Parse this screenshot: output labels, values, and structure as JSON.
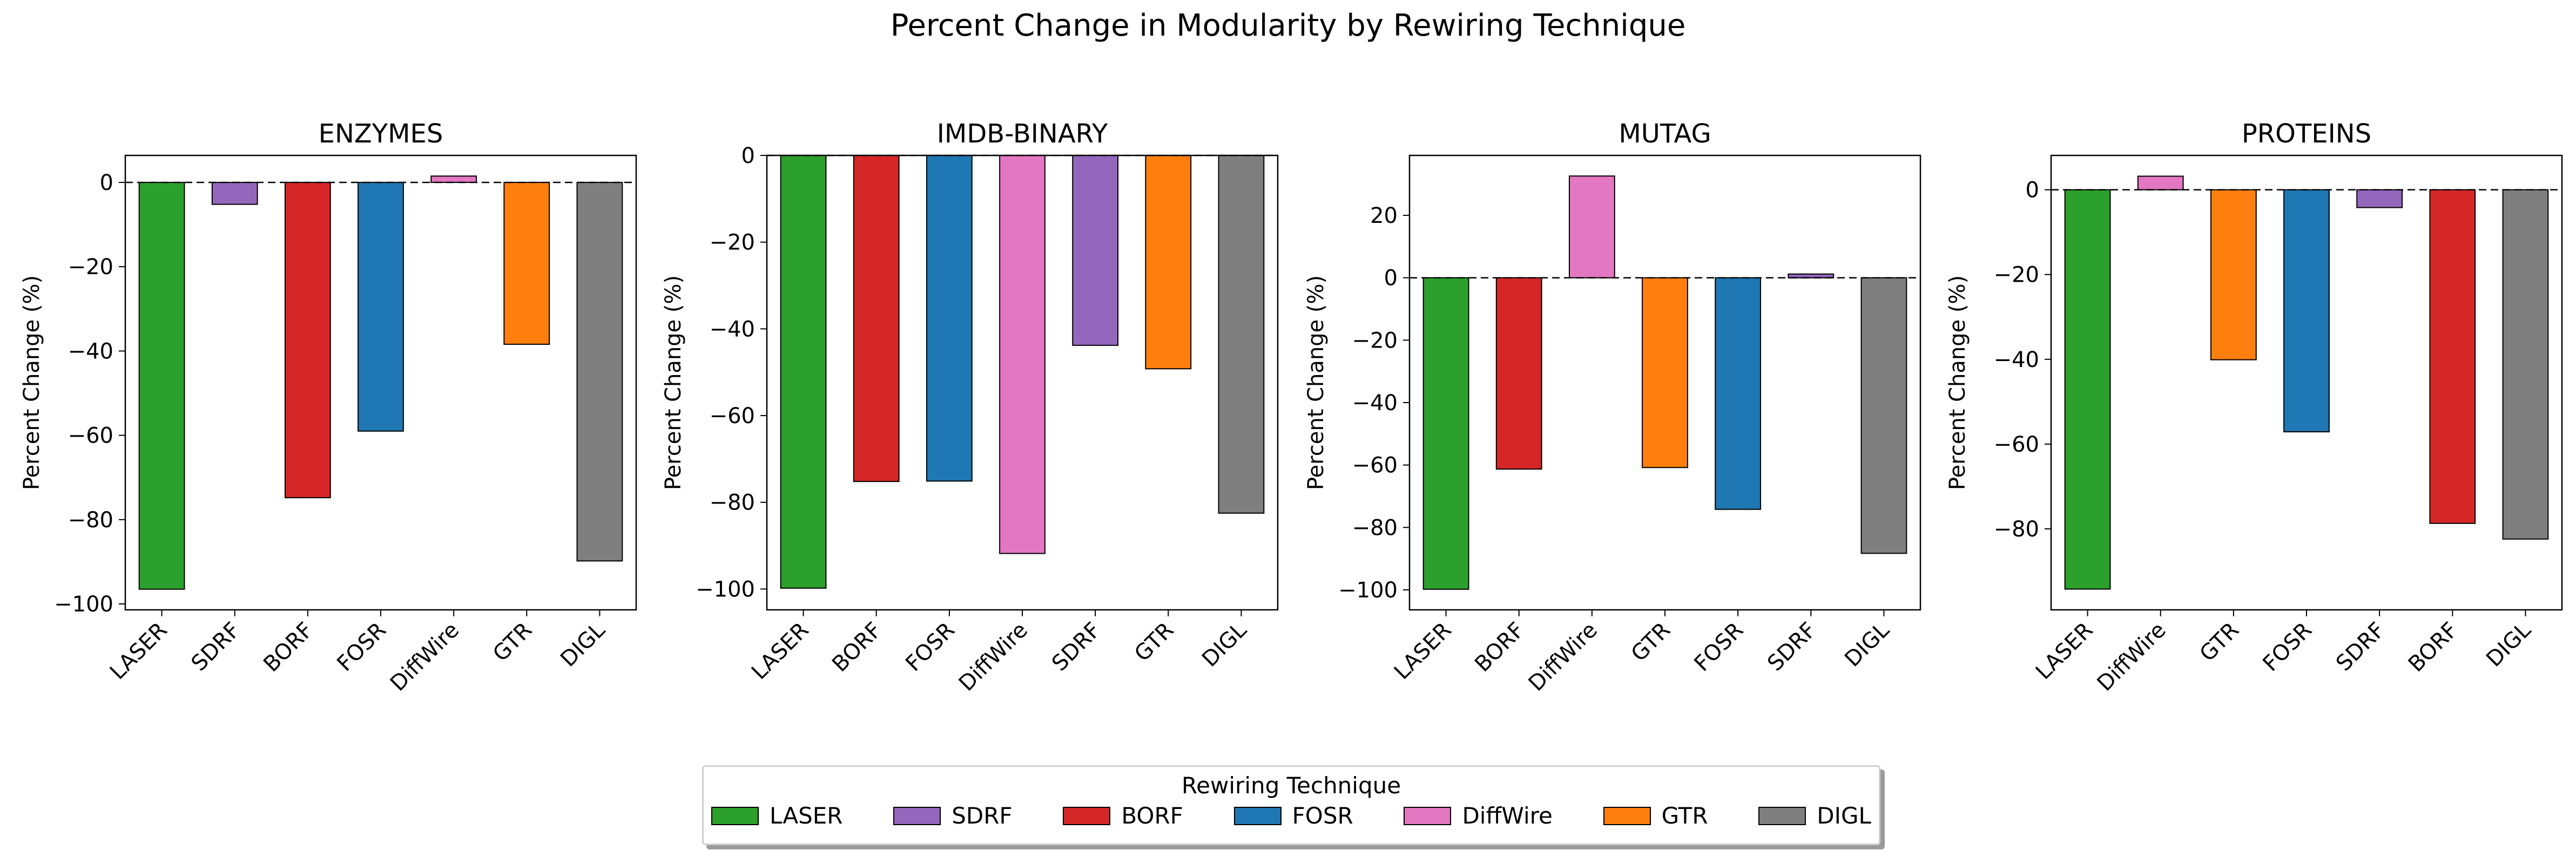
{
  "figure_title": "Percent Change in Modularity by Rewiring Technique",
  "colors": {
    "LASER": "#2ca02c",
    "SDRF": "#9467bd",
    "BORF": "#d62728",
    "FOSR": "#1f77b4",
    "DiffWire": "#e377c2",
    "GTR": "#ff7f0e",
    "DIGL": "#7f7f7f"
  },
  "legend": {
    "title": "Rewiring Technique",
    "items": [
      "LASER",
      "SDRF",
      "BORF",
      "FOSR",
      "DiffWire",
      "GTR",
      "DIGL"
    ]
  },
  "chart_data": [
    {
      "type": "bar",
      "title": "ENZYMES",
      "ylabel": "Percent Change (%)",
      "categories": [
        "LASER",
        "SDRF",
        "BORF",
        "FOSR",
        "DiffWire",
        "GTR",
        "DIGL"
      ],
      "values": [
        -96.5,
        -5.2,
        -74.8,
        -59.0,
        1.5,
        -38.4,
        -89.8
      ],
      "ylim": [
        -101.4,
        6.4
      ],
      "yticks": [
        0,
        -20,
        -40,
        -60,
        -80,
        -100
      ]
    },
    {
      "type": "bar",
      "title": "IMDB-BINARY",
      "ylabel": "Percent Change (%)",
      "categories": [
        "LASER",
        "BORF",
        "FOSR",
        "DiffWire",
        "SDRF",
        "GTR",
        "DIGL"
      ],
      "values": [
        -99.8,
        -75.2,
        -75.1,
        -91.8,
        -43.8,
        -49.2,
        -82.5
      ],
      "ylim": [
        -104.8,
        0
      ],
      "yticks": [
        0,
        -20,
        -40,
        -60,
        -80,
        -100
      ]
    },
    {
      "type": "bar",
      "title": "MUTAG",
      "ylabel": "Percent Change (%)",
      "categories": [
        "LASER",
        "BORF",
        "DiffWire",
        "GTR",
        "FOSR",
        "SDRF",
        "DIGL"
      ],
      "values": [
        -99.8,
        -61.3,
        32.6,
        -60.8,
        -74.2,
        1.2,
        -88.3
      ],
      "ylim": [
        -106.4,
        39.2
      ],
      "yticks": [
        20,
        0,
        -20,
        -40,
        -60,
        -80,
        -100
      ]
    },
    {
      "type": "bar",
      "title": "PROTEINS",
      "ylabel": "Percent Change (%)",
      "categories": [
        "LASER",
        "DiffWire",
        "GTR",
        "FOSR",
        "SDRF",
        "BORF",
        "DIGL"
      ],
      "values": [
        -94.2,
        3.2,
        -40.1,
        -57.1,
        -4.2,
        -78.7,
        -82.4
      ],
      "ylim": [
        -99.1,
        8.1
      ],
      "yticks": [
        0,
        -20,
        -40,
        -60,
        -80
      ]
    }
  ]
}
